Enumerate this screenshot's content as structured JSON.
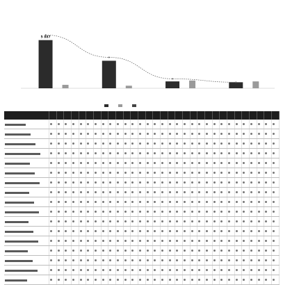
{
  "chart_data": {
    "type": "bar",
    "categories": [
      "",
      "",
      "",
      ""
    ],
    "series": [
      {
        "values": [
          5.6,
          3.2,
          0.8,
          0.7
        ],
        "color": "#2b2b2b",
        "labels": [
          "5 887",
          "",
          "",
          ""
        ]
      },
      {
        "values": [
          0.4,
          0.3,
          0.9,
          0.8
        ],
        "color": "#9a9a9a",
        "labels": [
          "",
          "",
          "",
          ""
        ]
      }
    ],
    "trend": {
      "values": [
        6.2,
        3.6,
        1.1,
        0.7
      ],
      "color": "#666666",
      "labels": [
        "",
        "",
        "",
        ""
      ]
    },
    "ylim": [
      0,
      8
    ],
    "ytick_values": [
      0,
      2,
      4,
      6,
      8
    ],
    "ytick_labels": [
      "",
      "",
      "",
      "",
      ""
    ],
    "legend_position": "bottom",
    "grid": false
  },
  "table": {
    "header_columns": 32,
    "row_count": 17
  }
}
